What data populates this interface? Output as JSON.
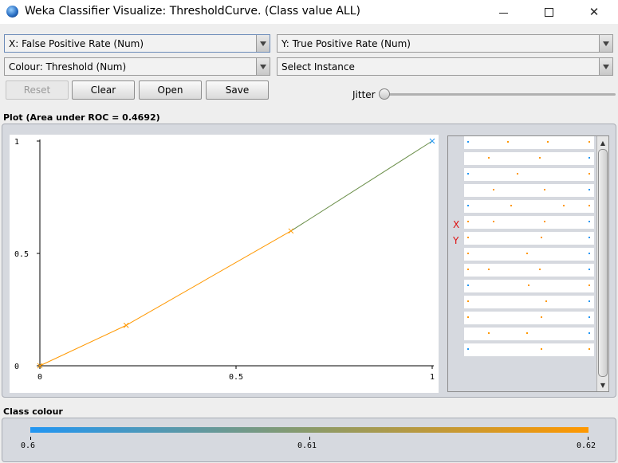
{
  "window": {
    "title": "Weka Classifier Visualize: ThresholdCurve. (Class value ALL)",
    "minimize_icon": "minimize-icon",
    "maximize_icon": "maximize-icon",
    "close_icon": "close-icon",
    "close_glyph": "✕"
  },
  "controls": {
    "x_axis": "X: False Positive Rate (Num)",
    "y_axis": "Y: True Positive Rate (Num)",
    "colour": "Colour: Threshold (Num)",
    "instance": "Select Instance",
    "reset_label": "Reset",
    "clear_label": "Clear",
    "open_label": "Open",
    "save_label": "Save",
    "jitter_label": "Jitter",
    "jitter_value": 0
  },
  "plot": {
    "title": "Plot (Area under ROC = 0.4692)"
  },
  "chart_data": {
    "type": "line",
    "x": [
      0,
      0.22,
      0.64,
      1
    ],
    "y": [
      0,
      0.18,
      0.6,
      1
    ],
    "point_colors": [
      "#ff9800",
      "#ff9800",
      "#ff9800",
      "#2196f3"
    ],
    "xlim": [
      0,
      1
    ],
    "ylim": [
      0,
      1
    ],
    "x_ticks": [
      "0",
      "0.5",
      "1"
    ],
    "y_ticks": [
      "0",
      "0.5",
      "1"
    ],
    "marker": "x",
    "grid": false,
    "xlabel": "",
    "ylabel": "",
    "title": ""
  },
  "attribute_panel": {
    "x_marker": "X",
    "y_marker": "Y",
    "scroll_up": "▲",
    "scroll_down": "▼"
  },
  "class_colour": {
    "title": "Class colour",
    "min_label": "0.6",
    "mid_label": "0.61",
    "max_label": "0.62",
    "colors": [
      "#2196f3",
      "#ff9800"
    ]
  }
}
